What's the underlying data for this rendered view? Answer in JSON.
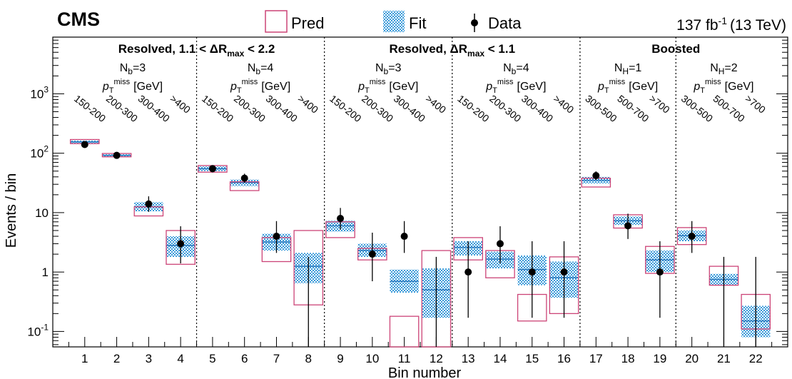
{
  "header": {
    "experiment": "CMS",
    "lumi": "137 fb",
    "lumi_sup": "-1",
    "energy": "(13 TeV)"
  },
  "legend": {
    "pred": "Pred",
    "fit": "Fit",
    "data": "Data"
  },
  "regions": [
    {
      "title_pre": "Resolved, 1.1 < ",
      "title_sym": "ΔR",
      "title_sub": "max",
      "title_post": " < 2.2"
    },
    {
      "title_pre": "Resolved, ",
      "title_sym": "ΔR",
      "title_sub": "max",
      "title_post": " < 1.1"
    },
    {
      "title_pre": "Boosted",
      "title_sym": "",
      "title_sub": "",
      "title_post": ""
    }
  ],
  "groups": [
    {
      "n_var": "N",
      "n_sub": "b",
      "n_val": "=3",
      "met": "[GeV]",
      "bins": [
        "150-200",
        "200-300",
        "300-400",
        ">400"
      ]
    },
    {
      "n_var": "N",
      "n_sub": "b",
      "n_val": "=4",
      "met": "[GeV]",
      "bins": [
        "150-200",
        "200-300",
        "300-400",
        ">400"
      ]
    },
    {
      "n_var": "N",
      "n_sub": "b",
      "n_val": "=3",
      "met": "[GeV]",
      "bins": [
        "150-200",
        "200-300",
        "300-400",
        ">400"
      ]
    },
    {
      "n_var": "N",
      "n_sub": "b",
      "n_val": "=4",
      "met": "[GeV]",
      "bins": [
        "150-200",
        "200-300",
        "300-400",
        ">400"
      ]
    },
    {
      "n_var": "N",
      "n_sub": "H",
      "n_val": "=1",
      "met": "[GeV]",
      "bins": [
        "300-500",
        "500-700",
        ">700"
      ]
    },
    {
      "n_var": "N",
      "n_sub": "H",
      "n_val": "=2",
      "met": "[GeV]",
      "bins": [
        "300-500",
        "500-700",
        ">700"
      ]
    }
  ],
  "chart_data": {
    "type": "bar",
    "xlabel": "Bin number",
    "ylabel": "Events / bin",
    "yscale": "log",
    "ylim": [
      0.055,
      9000
    ],
    "xlim": [
      0,
      23
    ],
    "categories": [
      "1",
      "2",
      "3",
      "4",
      "5",
      "6",
      "7",
      "8",
      "9",
      "10",
      "11",
      "12",
      "13",
      "14",
      "15",
      "16",
      "17",
      "18",
      "19",
      "20",
      "21",
      "22"
    ],
    "y_ticks": [
      {
        "value": 0.1,
        "base": "10",
        "exp": "-1"
      },
      {
        "value": 1,
        "base": "1",
        "exp": ""
      },
      {
        "value": 10,
        "base": "10",
        "exp": ""
      },
      {
        "value": 100,
        "base": "10",
        "exp": "2"
      },
      {
        "value": 1000,
        "base": "10",
        "exp": "3"
      }
    ],
    "region_boundaries": [
      8.5,
      16.5
    ],
    "group_boundaries": [
      4.5,
      12.5,
      19.5
    ],
    "series": [
      {
        "name": "Pred",
        "values": [
          155,
          92,
          10.5,
          2.8,
          55,
          28,
          2.5,
          2.2,
          5.2,
          2.0,
          0.09,
          0.9,
          2.7,
          1.4,
          0.9,
          0.9,
          33,
          7.2,
          2.1,
          4.3,
          0.85,
          0.22
        ],
        "low": [
          145,
          87,
          8.8,
          1.35,
          48,
          23.5,
          1.5,
          0.28,
          3.8,
          1.6,
          0.03,
          0.015,
          1.6,
          0.8,
          0.15,
          0.2,
          27,
          5.5,
          0.95,
          2.9,
          0.6,
          0.11
        ],
        "high": [
          170,
          99,
          12.5,
          5.0,
          62,
          33,
          3.8,
          5.0,
          7.0,
          2.5,
          0.18,
          2.3,
          3.8,
          2.3,
          0.42,
          1.8,
          38,
          9.2,
          2.7,
          5.6,
          1.25,
          0.42
        ]
      },
      {
        "name": "Fit",
        "values": [
          155,
          92,
          12.5,
          2.8,
          55,
          32,
          3.2,
          1.25,
          6.0,
          2.3,
          0.7,
          0.5,
          2.6,
          1.65,
          1.1,
          0.8,
          35,
          7.3,
          1.6,
          4.1,
          0.75,
          0.15
        ],
        "low": [
          147,
          88,
          10.5,
          1.8,
          50,
          28,
          2.3,
          0.65,
          4.8,
          1.8,
          0.45,
          0.17,
          1.9,
          1.15,
          0.6,
          0.37,
          31,
          6.2,
          1.0,
          3.3,
          0.6,
          0.08
        ],
        "high": [
          163,
          96,
          15,
          4.0,
          60,
          36,
          4.4,
          2.1,
          7.3,
          3.0,
          1.1,
          1.15,
          3.3,
          2.2,
          1.9,
          1.5,
          40,
          8.6,
          2.3,
          5.0,
          0.93,
          0.27
        ]
      },
      {
        "name": "Data",
        "values": [
          140,
          92,
          14,
          3,
          55,
          38,
          4,
          0,
          8,
          2,
          4,
          0,
          1,
          3,
          1,
          1,
          42,
          6,
          1,
          4,
          0,
          0
        ],
        "err_low": [
          12,
          9.6,
          3.7,
          1.6,
          7.4,
          6.1,
          1.9,
          0,
          2.8,
          1.3,
          1.9,
          0,
          0.83,
          1.6,
          0.83,
          0.83,
          6.5,
          2.4,
          0.83,
          1.9,
          0,
          0
        ],
        "err_high": [
          12,
          9.6,
          4.8,
          2.9,
          7.4,
          7.2,
          3.2,
          1.8,
          4.0,
          2.6,
          3.2,
          1.8,
          2.3,
          2.9,
          2.3,
          2.3,
          7.5,
          3.6,
          2.3,
          3.2,
          1.8,
          1.8
        ]
      }
    ],
    "colors": {
      "pred": "#cc4477",
      "fit": "#3a9ad9",
      "data": "#000000"
    }
  }
}
